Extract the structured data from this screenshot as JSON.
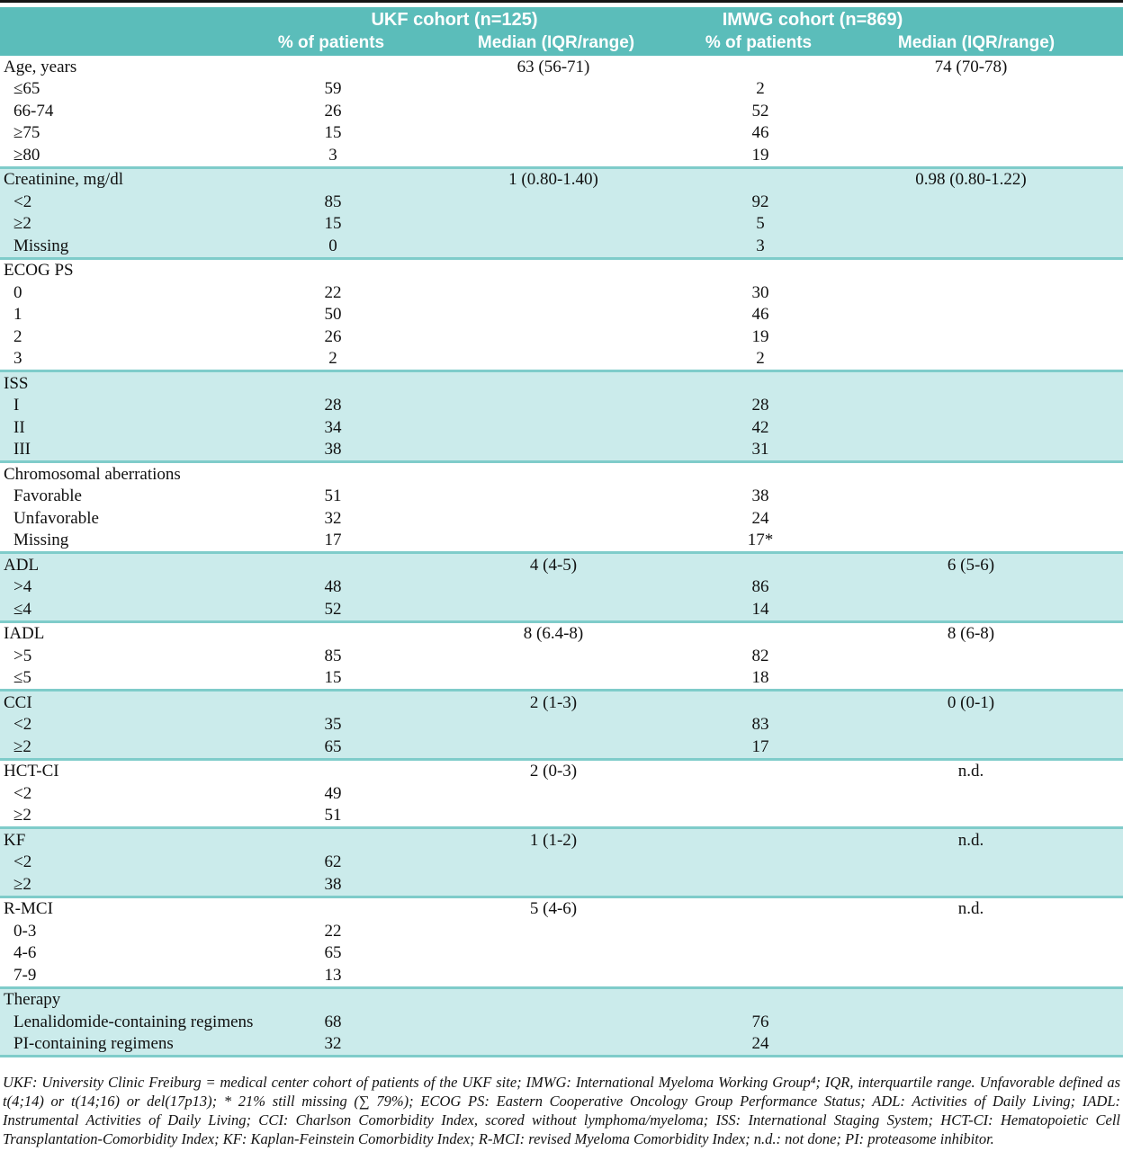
{
  "colors": {
    "header_teal": "#5bbdba",
    "stripe_blue": "#cbebeb",
    "separator_teal": "#7fccca",
    "top_rule": "#151515",
    "header_text": "#ffffff",
    "body_text": "#111111"
  },
  "table": {
    "header": {
      "ukf_group": "UKF cohort (n=125)",
      "imwg_group": "IMWG cohort (n=869)",
      "col_pct": "% of patients",
      "col_median": "Median (IQR/range)"
    },
    "sections": [
      {
        "id": "age",
        "shaded": false,
        "rows": [
          {
            "label": "Age, years",
            "indent": false,
            "ukf_median": "63 (56-71)",
            "imwg_median": "74 (70-78)"
          },
          {
            "label": "≤65",
            "indent": true,
            "ukf_pct": "59",
            "imwg_pct": "2"
          },
          {
            "label": "66-74",
            "indent": true,
            "ukf_pct": "26",
            "imwg_pct": "52"
          },
          {
            "label": "≥75",
            "indent": true,
            "ukf_pct": "15",
            "imwg_pct": "46"
          },
          {
            "label": "≥80",
            "indent": true,
            "ukf_pct": "3",
            "imwg_pct": "19"
          }
        ]
      },
      {
        "id": "creatinine",
        "shaded": true,
        "rows": [
          {
            "label": "Creatinine, mg/dl",
            "indent": false,
            "ukf_median": "1 (0.80-1.40)",
            "imwg_median": "0.98 (0.80-1.22)"
          },
          {
            "label": "<2",
            "indent": true,
            "ukf_pct": "85",
            "imwg_pct": "92"
          },
          {
            "label": "≥2",
            "indent": true,
            "ukf_pct": "15",
            "imwg_pct": "5"
          },
          {
            "label": "Missing",
            "indent": true,
            "ukf_pct": "0",
            "imwg_pct": "3"
          }
        ]
      },
      {
        "id": "ecog-ps",
        "shaded": false,
        "rows": [
          {
            "label": "ECOG PS",
            "indent": false
          },
          {
            "label": "0",
            "indent": true,
            "ukf_pct": "22",
            "imwg_pct": "30"
          },
          {
            "label": "1",
            "indent": true,
            "ukf_pct": "50",
            "imwg_pct": "46"
          },
          {
            "label": "2",
            "indent": true,
            "ukf_pct": "26",
            "imwg_pct": "19"
          },
          {
            "label": "3",
            "indent": true,
            "ukf_pct": "2",
            "imwg_pct": "2"
          }
        ]
      },
      {
        "id": "iss",
        "shaded": true,
        "rows": [
          {
            "label": "ISS",
            "indent": false
          },
          {
            "label": "I",
            "indent": true,
            "ukf_pct": "28",
            "imwg_pct": "28"
          },
          {
            "label": "II",
            "indent": true,
            "ukf_pct": "34",
            "imwg_pct": "42"
          },
          {
            "label": "III",
            "indent": true,
            "ukf_pct": "38",
            "imwg_pct": "31"
          }
        ]
      },
      {
        "id": "chromosomal-aberrations",
        "shaded": false,
        "rows": [
          {
            "label": "Chromosomal aberrations",
            "indent": false
          },
          {
            "label": "Favorable",
            "indent": true,
            "ukf_pct": "51",
            "imwg_pct": "38"
          },
          {
            "label": "Unfavorable",
            "indent": true,
            "ukf_pct": "32",
            "imwg_pct": "24"
          },
          {
            "label": "Missing",
            "indent": true,
            "ukf_pct": "17",
            "imwg_pct": "17*"
          }
        ]
      },
      {
        "id": "adl",
        "shaded": true,
        "rows": [
          {
            "label": "ADL",
            "indent": false,
            "ukf_median": "4 (4-5)",
            "imwg_median": "6 (5-6)"
          },
          {
            "label": ">4",
            "indent": true,
            "ukf_pct": "48",
            "imwg_pct": "86"
          },
          {
            "label": "≤4",
            "indent": true,
            "ukf_pct": "52",
            "imwg_pct": "14"
          }
        ]
      },
      {
        "id": "iadl",
        "shaded": false,
        "rows": [
          {
            "label": "IADL",
            "indent": false,
            "ukf_median": "8 (6.4-8)",
            "imwg_median": "8 (6-8)"
          },
          {
            "label": ">5",
            "indent": true,
            "ukf_pct": "85",
            "imwg_pct": "82"
          },
          {
            "label": "≤5",
            "indent": true,
            "ukf_pct": "15",
            "imwg_pct": "18"
          }
        ]
      },
      {
        "id": "cci",
        "shaded": true,
        "rows": [
          {
            "label": "CCI",
            "indent": false,
            "ukf_median": "2 (1-3)",
            "imwg_median": "0 (0-1)"
          },
          {
            "label": "<2",
            "indent": true,
            "ukf_pct": "35",
            "imwg_pct": "83"
          },
          {
            "label": "≥2",
            "indent": true,
            "ukf_pct": "65",
            "imwg_pct": "17"
          }
        ]
      },
      {
        "id": "hct-ci",
        "shaded": false,
        "rows": [
          {
            "label": "HCT-CI",
            "indent": false,
            "ukf_median": "2 (0-3)",
            "imwg_median": "n.d."
          },
          {
            "label": "<2",
            "indent": true,
            "ukf_pct": "49"
          },
          {
            "label": "≥2",
            "indent": true,
            "ukf_pct": "51"
          }
        ]
      },
      {
        "id": "kf",
        "shaded": true,
        "rows": [
          {
            "label": "KF",
            "indent": false,
            "ukf_median": "1 (1-2)",
            "imwg_median": "n.d."
          },
          {
            "label": "<2",
            "indent": true,
            "ukf_pct": "62"
          },
          {
            "label": "≥2",
            "indent": true,
            "ukf_pct": "38"
          }
        ]
      },
      {
        "id": "r-mci",
        "shaded": false,
        "rows": [
          {
            "label": "R-MCI",
            "indent": false,
            "ukf_median": "5 (4-6)",
            "imwg_median": "n.d."
          },
          {
            "label": "0-3",
            "indent": true,
            "ukf_pct": "22"
          },
          {
            "label": "4-6",
            "indent": true,
            "ukf_pct": "65"
          },
          {
            "label": "7-9",
            "indent": true,
            "ukf_pct": "13"
          }
        ]
      },
      {
        "id": "therapy",
        "shaded": true,
        "rows": [
          {
            "label": "Therapy",
            "indent": false
          },
          {
            "label": "Lenalidomide-containing regimens",
            "indent": true,
            "ukf_pct": "68",
            "imwg_pct": "76"
          },
          {
            "label": "PI-containing regimens",
            "indent": true,
            "ukf_pct": "32",
            "imwg_pct": "24"
          }
        ]
      }
    ]
  },
  "footnote": "UKF: University Clinic Freiburg = medical center cohort of patients of the UKF site; IMWG: International Myeloma Working Group⁴; IQR, interquartile range. Unfavorable defined as t(4;14) or t(14;16) or del(17p13); * 21% still missing (∑ 79%); ECOG PS: Eastern Cooperative Oncology Group Performance Status; ADL: Activities of Daily Living; IADL: Instrumental Activities of Daily Living; CCI: Charlson Comorbidity Index, scored without lymphoma/myeloma; ISS: International Staging System; HCT-CI: Hematopoietic Cell Transplantation-Comorbidity Index; KF: Kaplan-Feinstein Comorbidity Index; R-MCI: revised Myeloma Comorbidity Index; n.d.: not done; PI: proteasome inhibitor."
}
